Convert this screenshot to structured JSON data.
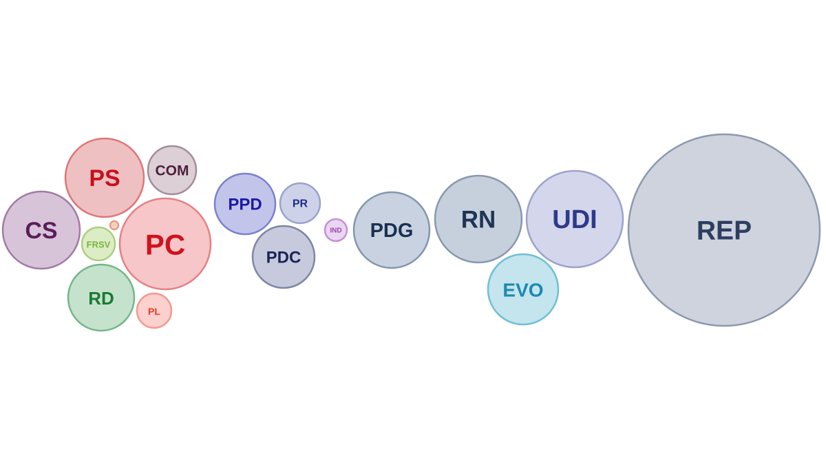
{
  "chart_data": {
    "type": "bubble",
    "title": "",
    "bubbles": [
      {
        "label": "CS",
        "group": "left",
        "fill": "#d8c4d8",
        "stroke": "#a27aa6",
        "text": "#5a1e5a"
      },
      {
        "label": "PS",
        "group": "left",
        "fill": "#eec0c2",
        "stroke": "#de7678",
        "text": "#c8101c"
      },
      {
        "label": "COM",
        "group": "left",
        "fill": "#dccfd6",
        "stroke": "#a38d99",
        "text": "#4d1f3d"
      },
      {
        "label": "FRSV",
        "group": "left",
        "fill": "#dcedc6",
        "stroke": "#a9d07e",
        "text": "#7ab43a"
      },
      {
        "label": "··",
        "group": "left",
        "fill": "#f6d6c8",
        "stroke": "#ed9a80",
        "text": "#e06040"
      },
      {
        "label": "PC",
        "group": "left",
        "fill": "#f6c6c8",
        "stroke": "#e58084",
        "text": "#d0121c"
      },
      {
        "label": "RD",
        "group": "left",
        "fill": "#c4e2cc",
        "stroke": "#74b68a",
        "text": "#1a7a34"
      },
      {
        "label": "PL",
        "group": "left",
        "fill": "#fcd0cc",
        "stroke": "#f29890",
        "text": "#ee3a28"
      },
      {
        "label": "PPD",
        "group": "center",
        "fill": "#c2c4ea",
        "stroke": "#7c80cc",
        "text": "#1a1aa6"
      },
      {
        "label": "PR",
        "group": "center",
        "fill": "#cdd2e8",
        "stroke": "#9aa2cc",
        "text": "#1e2a8a"
      },
      {
        "label": "PDC",
        "group": "center",
        "fill": "#c6cadc",
        "stroke": "#7e86a4",
        "text": "#1a2456"
      },
      {
        "label": "IND",
        "group": "center",
        "fill": "#ead6f0",
        "stroke": "#c690d8",
        "text": "#9a44b4"
      },
      {
        "label": "PDG",
        "group": "right",
        "fill": "#c8d2e0",
        "stroke": "#8496ae",
        "text": "#1a3050"
      },
      {
        "label": "RN",
        "group": "right",
        "fill": "#c6d0dc",
        "stroke": "#8898ac",
        "text": "#1e3554"
      },
      {
        "label": "UDI",
        "group": "right",
        "fill": "#d4d6ec",
        "stroke": "#9ca2cc",
        "text": "#2e3a8a"
      },
      {
        "label": "EVO",
        "group": "right",
        "fill": "#c4e4ee",
        "stroke": "#6ec0d4",
        "text": "#1a8ab0"
      },
      {
        "label": "REP",
        "group": "right",
        "fill": "#ced3de",
        "stroke": "#8c98ae",
        "text": "#2e3e60"
      }
    ]
  }
}
